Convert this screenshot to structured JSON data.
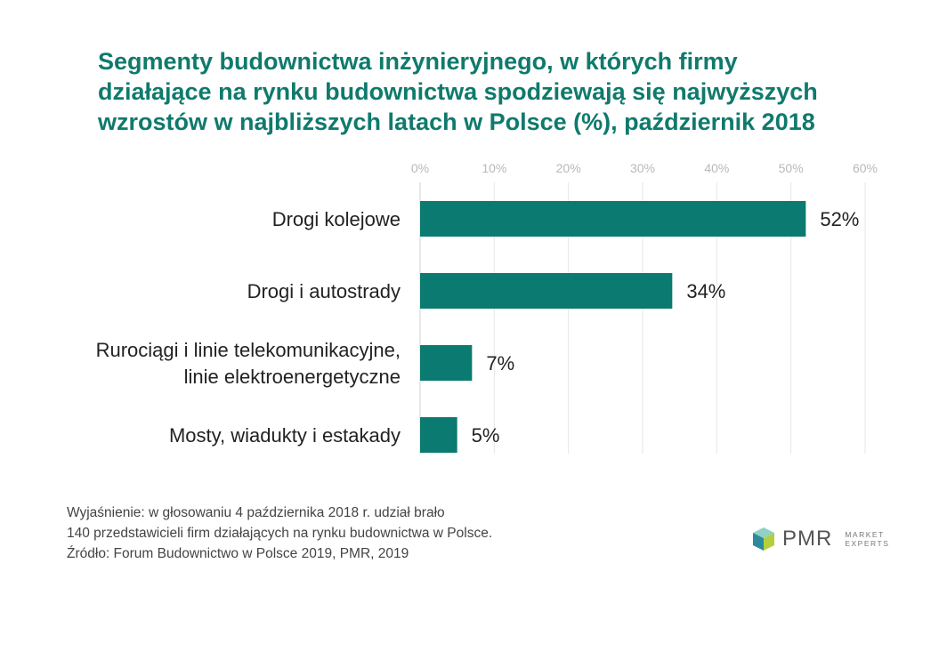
{
  "chart_data": {
    "type": "bar",
    "orientation": "horizontal",
    "title": "Segmenty budownictwa inżynieryjnego, w których firmy działające na rynku budownictwa spodziewają się najwyższych wzrostów w najbliższych latach w Polsce (%), październik 2018",
    "title_lines": [
      "Segmenty budownictwa inżynieryjnego, w których firmy",
      "działające na rynku budownictwa spodziewają się najwyższych",
      "wzrostów w najbliższych latach w Polsce (%), październik 2018"
    ],
    "categories": [
      [
        "Drogi kolejowe"
      ],
      [
        "Drogi i autostrady"
      ],
      [
        "Rurociągi i linie telekomunikacyjne,",
        "linie elektroenergetyczne"
      ],
      [
        "Mosty, wiadukty i estakady"
      ]
    ],
    "values": [
      52,
      34,
      7,
      5
    ],
    "value_labels": [
      "52%",
      "34%",
      "7%",
      "5%"
    ],
    "x_ticks": [
      0,
      10,
      20,
      30,
      40,
      50,
      60
    ],
    "x_tick_labels": [
      "0%",
      "10%",
      "20%",
      "30%",
      "40%",
      "50%",
      "60%"
    ],
    "xlim": [
      0,
      60
    ],
    "axis_position": "top",
    "grid": true,
    "bar_color": "#0b7a70",
    "title_color": "#0f7a6c"
  },
  "footer": {
    "note_lines": [
      "Wyjaśnienie: w głosowaniu 4 października 2018 r. udział brało",
      "140 przedstawicieli firm działających na rynku budownictwa w Polsce.",
      "Źródło: Forum Budownictwo w Polsce 2019, PMR, 2019"
    ]
  },
  "logo": {
    "name": "PMR",
    "tagline_lines": [
      "MARKET",
      "EXPERTS"
    ]
  }
}
